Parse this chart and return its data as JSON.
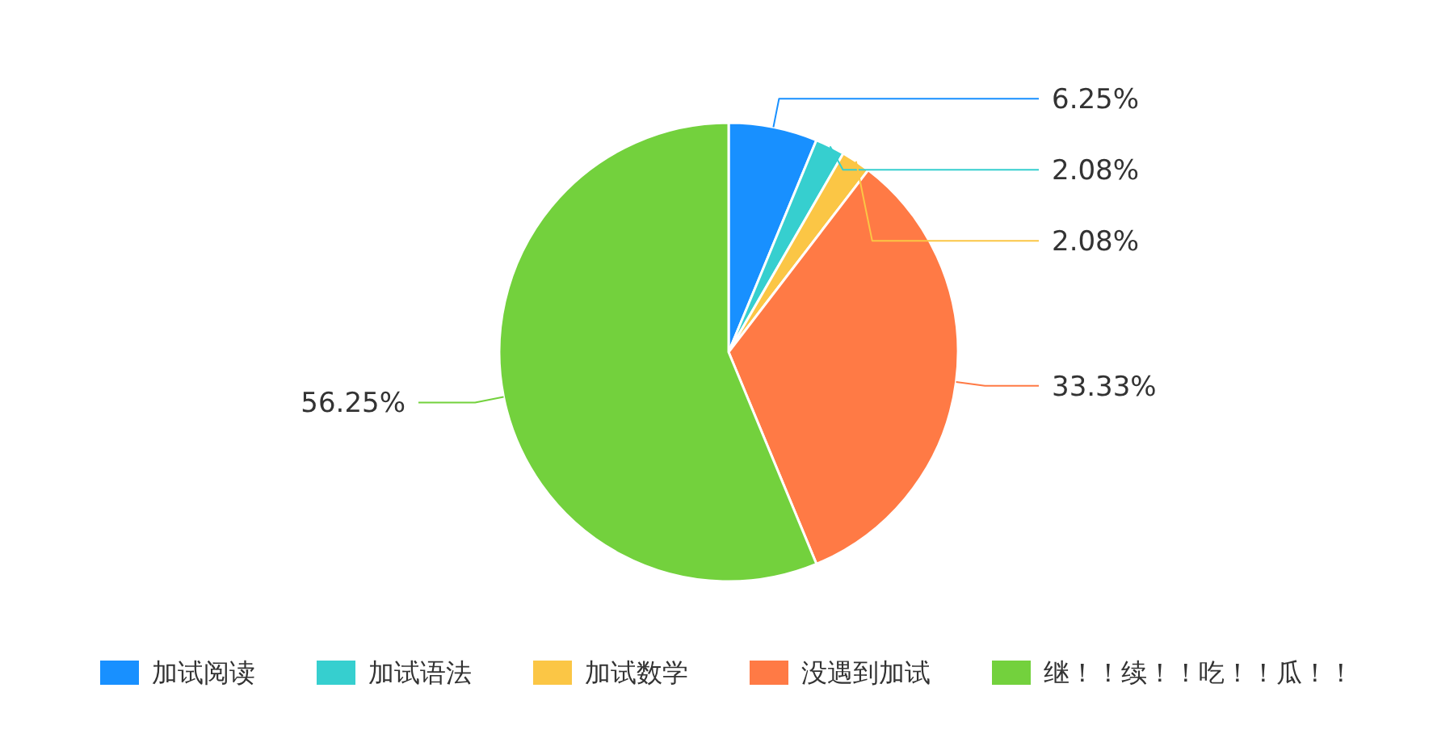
{
  "chart_data": {
    "type": "pie",
    "categories": [
      "加试阅读",
      "加试语法",
      "加试数学",
      "没遇到加试",
      "继！！续！！吃！！瓜！！"
    ],
    "values": [
      6.25,
      2.08,
      2.08,
      33.33,
      56.25
    ],
    "colors": [
      "#1890ff",
      "#36cfcf",
      "#fbc645",
      "#ff7a45",
      "#73d13d"
    ],
    "value_labels": [
      "6.25%",
      "2.08%",
      "2.08%",
      "33.33%",
      "56.25%"
    ],
    "legend": "bottom"
  }
}
